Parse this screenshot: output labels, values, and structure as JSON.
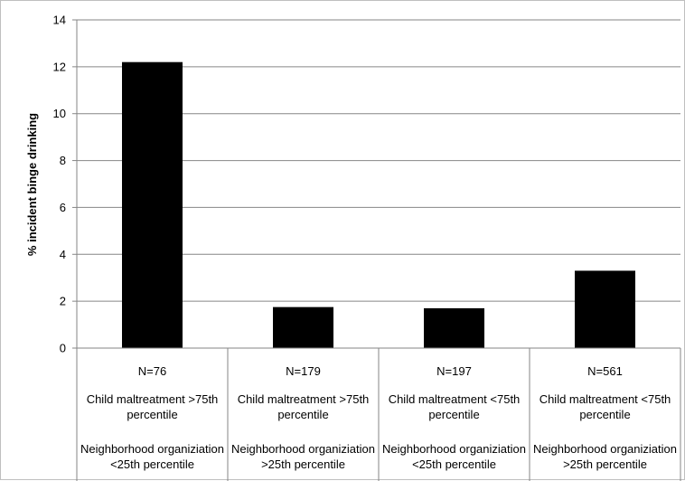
{
  "chart_data": {
    "type": "bar",
    "title": "",
    "xlabel": "",
    "ylabel": "% incident binge drinking",
    "ylim": [
      0,
      14
    ],
    "yticks": [
      0,
      2,
      4,
      6,
      8,
      10,
      12,
      14
    ],
    "grid": true,
    "legend": "none",
    "bar_color": "#000000",
    "grid_color": "#868686",
    "categories": [
      {
        "n": "N=76",
        "maltreatment": [
          "Child maltreatment >75th",
          "percentile"
        ],
        "neighborhood": [
          "Neighborhood organiziation",
          "<25th percentile"
        ]
      },
      {
        "n": "N=179",
        "maltreatment": [
          "Child maltreatment >75th",
          "percentile"
        ],
        "neighborhood": [
          "Neighborhood organiziation",
          ">25th percentile"
        ]
      },
      {
        "n": "N=197",
        "maltreatment": [
          "Child maltreatment <75th",
          "percentile"
        ],
        "neighborhood": [
          "Neighborhood organiziation",
          "<25th percentile"
        ]
      },
      {
        "n": "N=561",
        "maltreatment": [
          "Child maltreatment <75th",
          "percentile"
        ],
        "neighborhood": [
          "Neighborhood organiziation",
          ">25th percentile"
        ]
      }
    ],
    "values": [
      12.2,
      1.75,
      1.7,
      3.3
    ]
  }
}
